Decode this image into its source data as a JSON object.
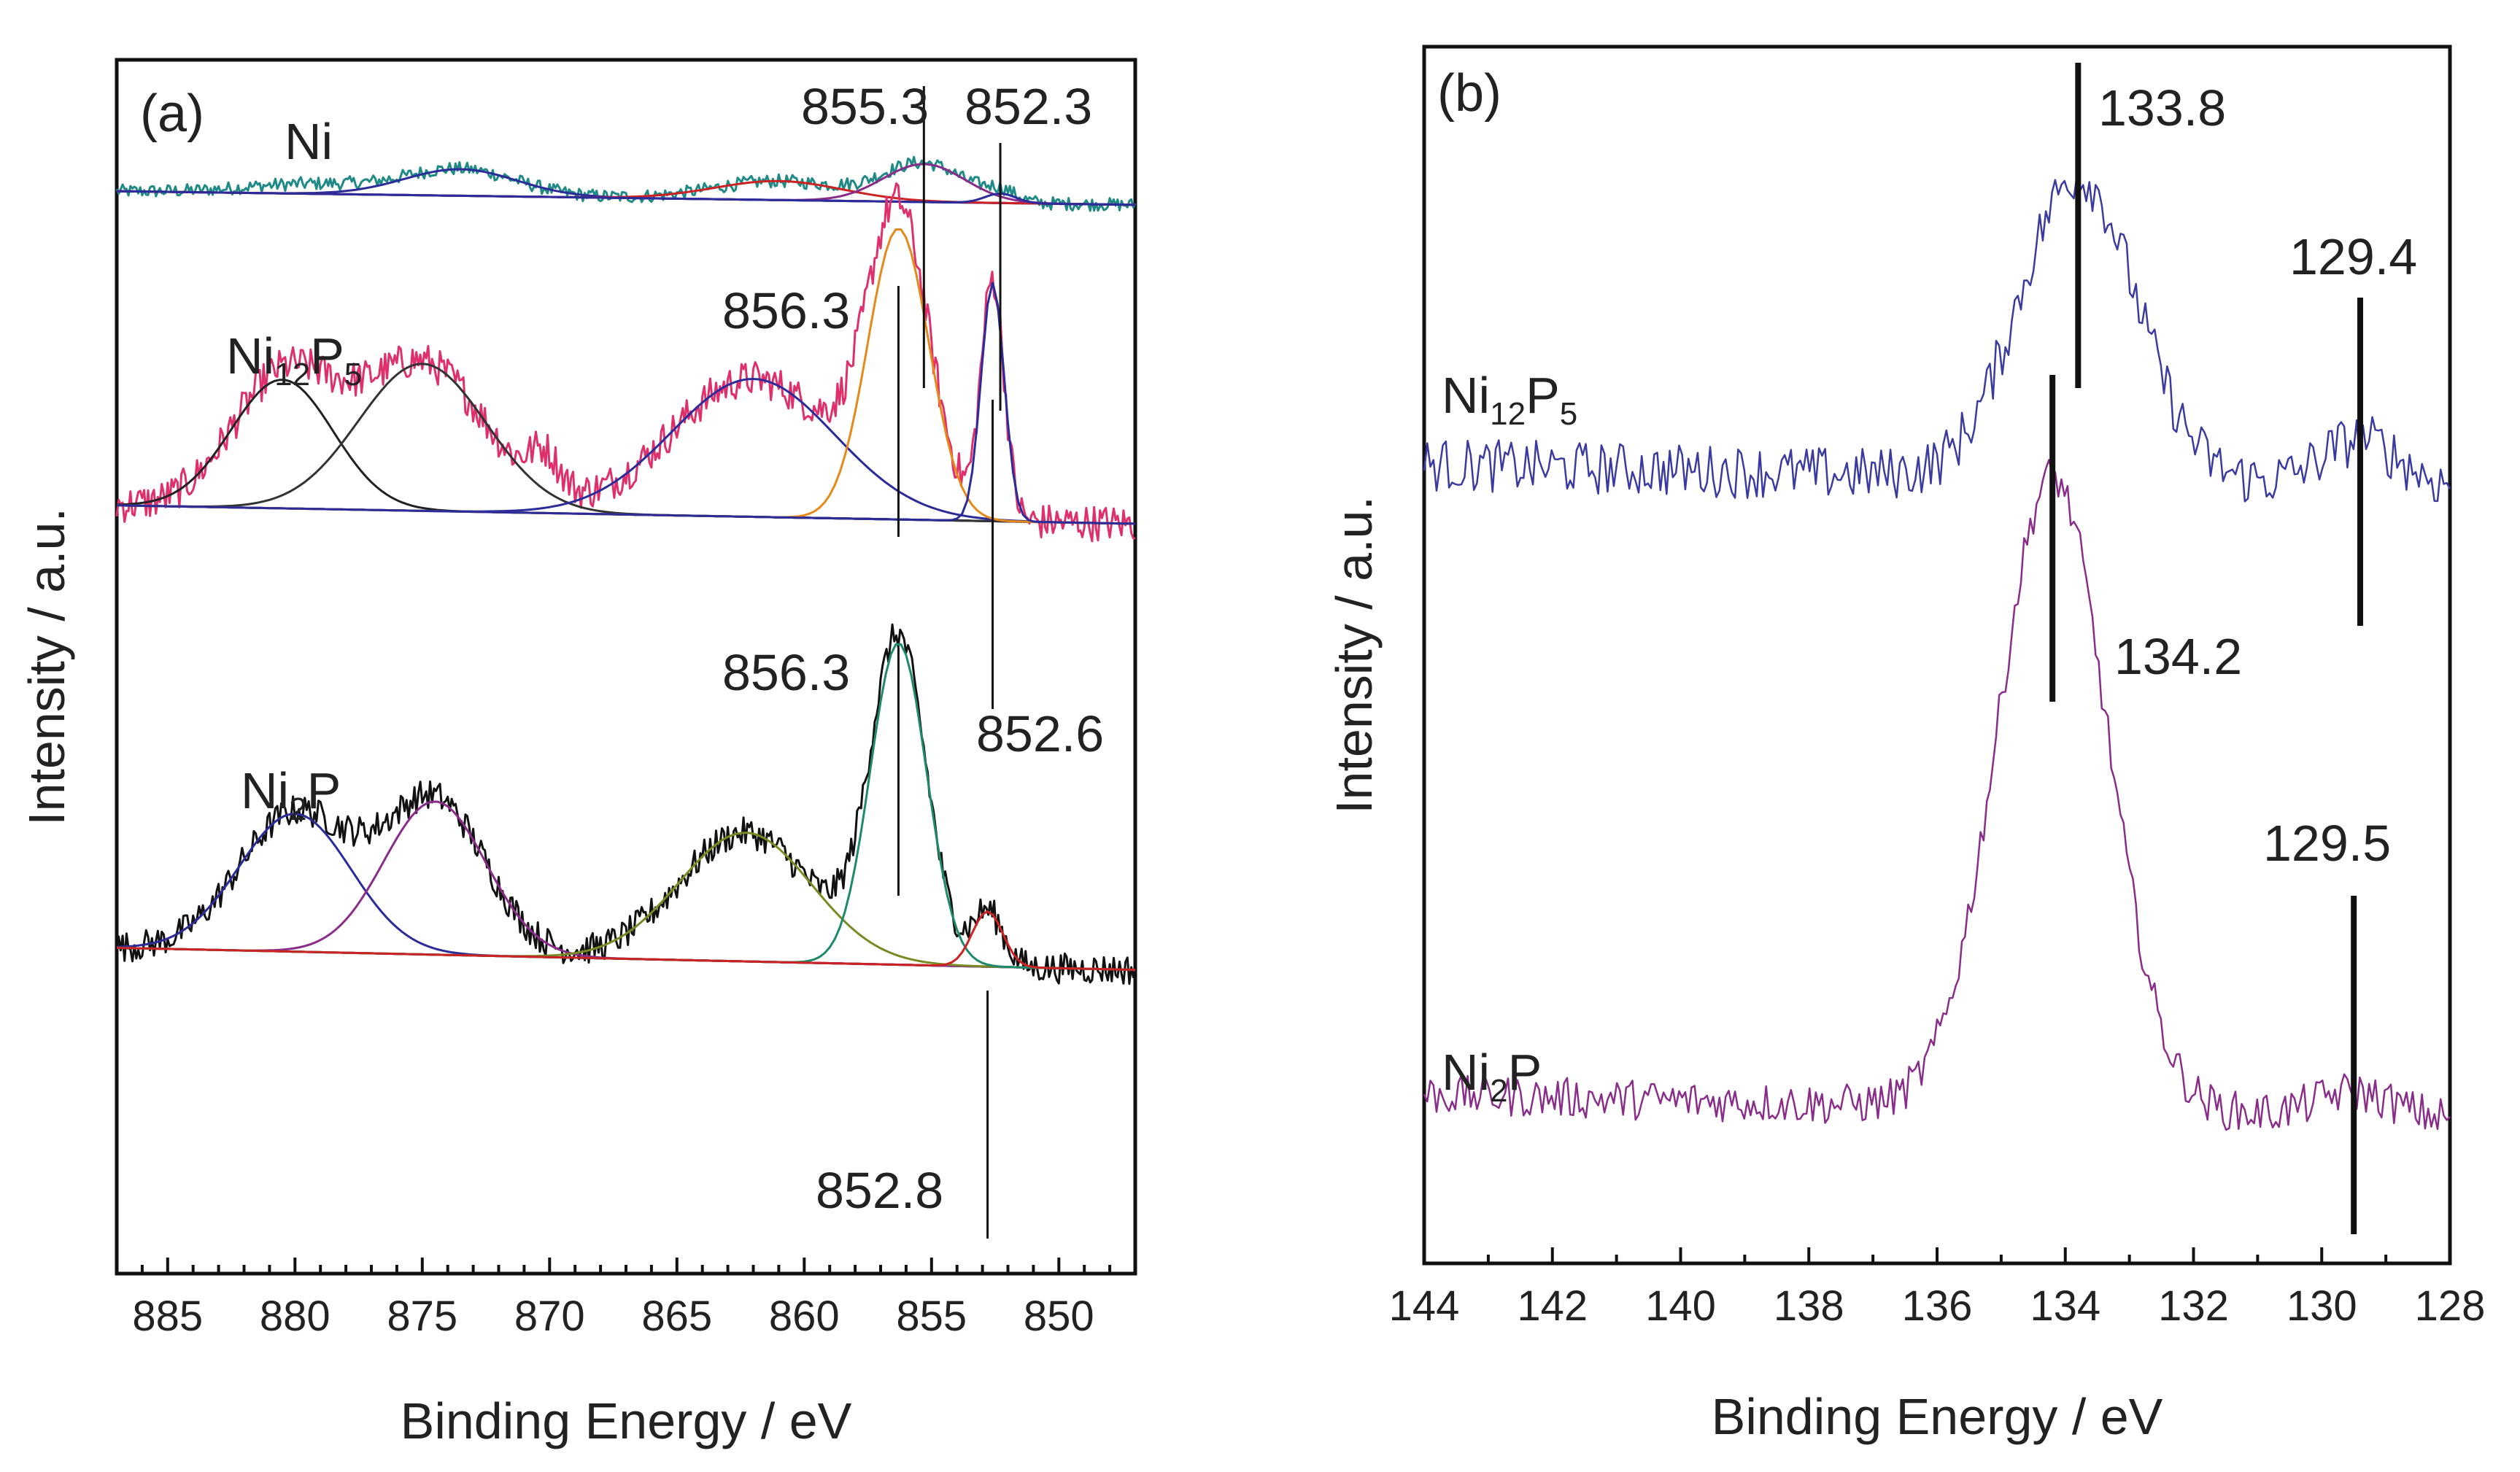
{
  "chart_data": [
    {
      "panel": "(a)",
      "type": "line",
      "title": "",
      "xlabel": "Binding Energy / eV",
      "ylabel": "Intensity / a.u.",
      "xlim": [
        887,
        847
      ],
      "x_reversed": true,
      "x_ticks": [
        885,
        880,
        875,
        870,
        865,
        860,
        855,
        850
      ],
      "y_ticks_shown": false,
      "traces": [
        {
          "name": "Ni",
          "color": "#1f8a86",
          "baseline": 0.12,
          "noise": 0.035,
          "peaks": [
            {
              "center": 879.5,
              "height": 0.05,
              "width": 2.5
            },
            {
              "center": 873.5,
              "height": 0.14,
              "width": 2.2
            },
            {
              "center": 861.0,
              "height": 0.1,
              "width": 2.5
            },
            {
              "center": 855.3,
              "height": 0.2,
              "width": 1.6
            },
            {
              "center": 852.3,
              "height": 0.05,
              "width": 0.6
            }
          ],
          "fit_components": [
            {
              "center": 873.5,
              "height": 0.14,
              "width": 2.2,
              "color": "#2b2b9a"
            },
            {
              "center": 861.0,
              "height": 0.1,
              "width": 2.5,
              "color": "#cc2222"
            },
            {
              "center": 855.3,
              "height": 0.2,
              "width": 1.6,
              "color": "#8a2d8a"
            },
            {
              "center": 852.3,
              "height": 0.05,
              "width": 0.6,
              "color": "#2b2b9a"
            }
          ],
          "annotations": [
            {
              "label": "855.3",
              "x": 855.3
            },
            {
              "label": "852.3",
              "x": 852.3
            }
          ]
        },
        {
          "name": "Ni12P5",
          "name_main": "Ni",
          "name_sub1": "12",
          "name_mid": "P",
          "name_sub2": "5",
          "color": "#e0306b",
          "baseline": 0.1,
          "noise": 0.06,
          "peaks": [
            {
              "center": 880.5,
              "height": 0.42,
              "width": 2.0
            },
            {
              "center": 875.0,
              "height": 0.48,
              "width": 2.5
            },
            {
              "center": 870.2,
              "height": 0.12,
              "width": 0.6
            },
            {
              "center": 862.0,
              "height": 0.45,
              "width": 3.2
            },
            {
              "center": 856.3,
              "height": 0.95,
              "width": 1.2
            },
            {
              "center": 852.6,
              "height": 0.78,
              "width": 0.45
            }
          ],
          "fit_components": [
            {
              "center": 880.5,
              "height": 0.42,
              "width": 2.0,
              "color": "#222222"
            },
            {
              "center": 875.0,
              "height": 0.48,
              "width": 2.5,
              "color": "#333333"
            },
            {
              "center": 862.0,
              "height": 0.45,
              "width": 3.2,
              "color": "#2b2b9a"
            },
            {
              "center": 856.3,
              "height": 0.95,
              "width": 1.2,
              "color": "#e58a1a"
            },
            {
              "center": 852.6,
              "height": 0.78,
              "width": 0.45,
              "color": "#2b2b9a"
            }
          ],
          "annotations": [
            {
              "label": "856.3",
              "x": 856.3
            },
            {
              "label": "852.6",
              "x": 852.6
            }
          ]
        },
        {
          "name": "Ni2P",
          "name_main": "Ni",
          "name_sub1": "2",
          "name_mid": "P",
          "color": "#111111",
          "baseline": 0.12,
          "noise": 0.05,
          "peaks": [
            {
              "center": 880.0,
              "height": 0.45,
              "width": 2.2
            },
            {
              "center": 874.5,
              "height": 0.5,
              "width": 2.0
            },
            {
              "center": 862.3,
              "height": 0.42,
              "width": 2.6
            },
            {
              "center": 856.3,
              "height": 1.05,
              "width": 1.1
            },
            {
              "center": 852.8,
              "height": 0.18,
              "width": 0.6
            }
          ],
          "fit_components": [
            {
              "center": 880.0,
              "height": 0.45,
              "width": 2.2,
              "color": "#2b2b9a"
            },
            {
              "center": 874.5,
              "height": 0.5,
              "width": 2.0,
              "color": "#8a2d8a"
            },
            {
              "center": 862.3,
              "height": 0.42,
              "width": 2.6,
              "color": "#7a8a22"
            },
            {
              "center": 856.3,
              "height": 1.05,
              "width": 1.1,
              "color": "#1f8a6a"
            },
            {
              "center": 852.8,
              "height": 0.18,
              "width": 0.6,
              "color": "#cc2222"
            }
          ],
          "annotations": [
            {
              "label": "856.3",
              "x": 856.3
            },
            {
              "label": "852.8",
              "x": 852.8
            }
          ]
        }
      ]
    },
    {
      "panel": "(b)",
      "type": "line",
      "title": "",
      "xlabel": "Binding Energy / eV",
      "ylabel": "Intensity / a.u.",
      "xlim": [
        144,
        128
      ],
      "x_reversed": true,
      "x_ticks": [
        144,
        142,
        140,
        138,
        136,
        134,
        132,
        130,
        128
      ],
      "y_ticks_shown": false,
      "traces": [
        {
          "name": "Ni12P5",
          "name_main": "Ni",
          "name_sub1": "12",
          "name_mid": "P",
          "name_sub2": "5",
          "color": "#3a3aa0",
          "baseline": 0.1,
          "noise": 0.07,
          "peaks": [
            {
              "center": 133.8,
              "height": 0.8,
              "width": 0.9
            },
            {
              "center": 129.4,
              "height": 0.12,
              "width": 0.6
            }
          ],
          "annotations": [
            {
              "label": "133.8",
              "x": 133.8
            },
            {
              "label": "129.4",
              "x": 129.4
            }
          ]
        },
        {
          "name": "Ni2P",
          "name_main": "Ni",
          "name_sub1": "2",
          "name_mid": "P",
          "color": "#8a2d8a",
          "baseline": 0.1,
          "noise": 0.05,
          "peaks": [
            {
              "center": 134.2,
              "height": 1.55,
              "width": 0.85
            },
            {
              "center": 129.5,
              "height": 0.06,
              "width": 0.6
            }
          ],
          "annotations": [
            {
              "label": "134.2",
              "x": 134.2
            },
            {
              "label": "129.5",
              "x": 129.5
            }
          ]
        }
      ]
    }
  ]
}
